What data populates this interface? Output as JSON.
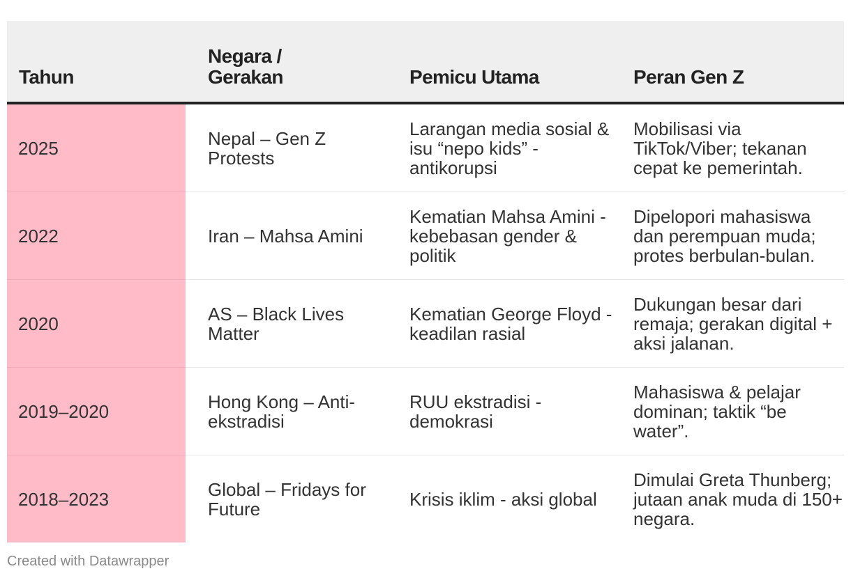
{
  "chart_data": {
    "type": "table",
    "columns": [
      "Tahun",
      "Negara / Gerakan",
      "Pemicu Utama",
      "Peran Gen Z"
    ],
    "rows": [
      {
        "tahun": "2025",
        "negara": "Nepal – Gen Z Protests",
        "pemicu": "Larangan media sosial & isu “nepo kids” - antikorupsi",
        "peran": "Mobilisasi via TikTok/Viber; tekanan cepat ke pemerintah."
      },
      {
        "tahun": "2022",
        "negara": "Iran – Mahsa Amini",
        "pemicu": "Kematian Mahsa Amini - kebebasan gender & politik",
        "peran": "Dipelopori mahasiswa dan perempuan muda; protes berbulan-bulan."
      },
      {
        "tahun": "2020",
        "negara": "AS – Black Lives Matter",
        "pemicu": "Kematian George Floyd - keadilan rasial",
        "peran": "Dukungan besar dari remaja; gerakan digital + aksi jalanan."
      },
      {
        "tahun": "2019–2020",
        "negara": "Hong Kong – Anti-ekstradisi",
        "pemicu": "RUU ekstradisi - demokrasi",
        "peran": "Mahasiswa & pelajar dominan; taktik “be water”."
      },
      {
        "tahun": "2018–2023",
        "negara": "Global – Fridays for Future",
        "pemicu": "Krisis iklim - aksi global",
        "peran": "Dimulai Greta Thunberg; jutaan anak muda di 150+ negara."
      }
    ]
  },
  "header": {
    "col1_line1": "Tahun",
    "col2_line1": "Negara /",
    "col2_line2": "Gerakan",
    "col3_line1": "Pemicu Utama",
    "col4_line1": "Peran Gen Z"
  },
  "colors": {
    "year_column_bg": "#ffbcc8",
    "header_bg": "#efefef"
  },
  "footer": {
    "credit": "Created with Datawrapper"
  }
}
